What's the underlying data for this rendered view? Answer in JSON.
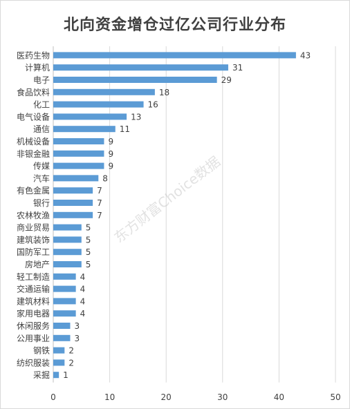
{
  "chart_data": {
    "type": "bar",
    "orientation": "horizontal",
    "title": "北向资金增仓过亿公司行业分布",
    "categories": [
      "医药生物",
      "计算机",
      "电子",
      "食品饮料",
      "化工",
      "电气设备",
      "通信",
      "机械设备",
      "非银金融",
      "传媒",
      "汽车",
      "有色金属",
      "银行",
      "农林牧渔",
      "商业贸易",
      "建筑装饰",
      "国防军工",
      "房地产",
      "轻工制造",
      "交通运输",
      "建筑材料",
      "家用电器",
      "休闲服务",
      "公用事业",
      "钢铁",
      "纺织服装",
      "采掘"
    ],
    "values": [
      43,
      31,
      29,
      18,
      16,
      13,
      11,
      9,
      9,
      9,
      8,
      7,
      7,
      7,
      5,
      5,
      5,
      5,
      4,
      4,
      4,
      4,
      3,
      3,
      2,
      2,
      1
    ],
    "xlim": [
      0,
      50
    ],
    "xticks": [
      0,
      10,
      20,
      30,
      40,
      50
    ],
    "grid": true,
    "bar_color": "#5b9bd5",
    "data_labels": true
  },
  "watermark": "东方财富Choice数据"
}
